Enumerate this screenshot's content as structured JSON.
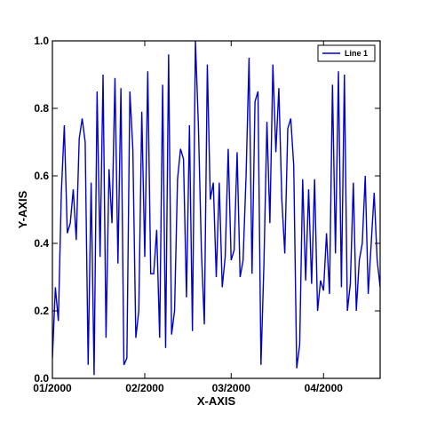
{
  "chart_data": {
    "type": "line",
    "title": "",
    "xlabel": "X-AXIS",
    "ylabel": "Y-AXIS",
    "x_type": "date",
    "xlim": [
      "2000-01-01",
      "2000-04-20"
    ],
    "ylim": [
      0.0,
      1.0
    ],
    "x_ticks": [
      "2000-01-01",
      "2000-02-01",
      "2000-03-01",
      "2000-04-01"
    ],
    "x_tick_labels": [
      "01/2000",
      "02/2000",
      "03/2000",
      "04/2000"
    ],
    "y_ticks": [
      0.0,
      0.2,
      0.4,
      0.6,
      0.8,
      1.0
    ],
    "y_tick_labels": [
      "0.0",
      "0.2",
      "0.4",
      "0.6",
      "0.8",
      "1.0"
    ],
    "grid": false,
    "legend_position": "top-right",
    "series": [
      {
        "name": "Line 1",
        "color": "#0000cc",
        "x": [
          "2000-01-01",
          "2000-01-02",
          "2000-01-03",
          "2000-01-04",
          "2000-01-05",
          "2000-01-06",
          "2000-01-07",
          "2000-01-08",
          "2000-01-09",
          "2000-01-10",
          "2000-01-11",
          "2000-01-12",
          "2000-01-13",
          "2000-01-14",
          "2000-01-15",
          "2000-01-16",
          "2000-01-17",
          "2000-01-18",
          "2000-01-19",
          "2000-01-20",
          "2000-01-21",
          "2000-01-22",
          "2000-01-23",
          "2000-01-24",
          "2000-01-25",
          "2000-01-26",
          "2000-01-27",
          "2000-01-28",
          "2000-01-29",
          "2000-01-30",
          "2000-01-31",
          "2000-02-01",
          "2000-02-02",
          "2000-02-03",
          "2000-02-04",
          "2000-02-05",
          "2000-02-06",
          "2000-02-07",
          "2000-02-08",
          "2000-02-09",
          "2000-02-10",
          "2000-02-11",
          "2000-02-12",
          "2000-02-13",
          "2000-02-14",
          "2000-02-15",
          "2000-02-16",
          "2000-02-17",
          "2000-02-18",
          "2000-02-19",
          "2000-02-20",
          "2000-02-21",
          "2000-02-22",
          "2000-02-23",
          "2000-02-24",
          "2000-02-25",
          "2000-02-26",
          "2000-02-27",
          "2000-02-28",
          "2000-02-29",
          "2000-03-01",
          "2000-03-02",
          "2000-03-03",
          "2000-03-04",
          "2000-03-05",
          "2000-03-06",
          "2000-03-07",
          "2000-03-08",
          "2000-03-09",
          "2000-03-10",
          "2000-03-11",
          "2000-03-12",
          "2000-03-13",
          "2000-03-14",
          "2000-03-15",
          "2000-03-16",
          "2000-03-17",
          "2000-03-18",
          "2000-03-19",
          "2000-03-20",
          "2000-03-21",
          "2000-03-22",
          "2000-03-23",
          "2000-03-24",
          "2000-03-25",
          "2000-03-26",
          "2000-03-27",
          "2000-03-28",
          "2000-03-29",
          "2000-03-30",
          "2000-03-31",
          "2000-04-01",
          "2000-04-02",
          "2000-04-03",
          "2000-04-04",
          "2000-04-05",
          "2000-04-06",
          "2000-04-07",
          "2000-04-08",
          "2000-04-09",
          "2000-04-10",
          "2000-04-11",
          "2000-04-12",
          "2000-04-13",
          "2000-04-14",
          "2000-04-15",
          "2000-04-16",
          "2000-04-17",
          "2000-04-18",
          "2000-04-19",
          "2000-04-20"
        ],
        "y": [
          0.06,
          0.27,
          0.17,
          0.55,
          0.75,
          0.43,
          0.46,
          0.56,
          0.41,
          0.71,
          0.77,
          0.7,
          0.04,
          0.58,
          0.01,
          0.85,
          0.36,
          0.9,
          0.12,
          0.62,
          0.46,
          0.89,
          0.34,
          0.86,
          0.04,
          0.06,
          0.85,
          0.68,
          0.12,
          0.2,
          0.79,
          0.36,
          0.91,
          0.31,
          0.31,
          0.44,
          0.12,
          0.87,
          0.09,
          0.96,
          0.13,
          0.2,
          0.59,
          0.68,
          0.65,
          0.24,
          0.75,
          0.14,
          1.0,
          0.75,
          0.38,
          0.16,
          0.93,
          0.53,
          0.58,
          0.3,
          0.58,
          0.27,
          0.36,
          0.68,
          0.35,
          0.38,
          0.67,
          0.3,
          0.35,
          0.6,
          0.95,
          0.31,
          0.82,
          0.85,
          0.04,
          0.34,
          0.76,
          0.46,
          0.93,
          0.67,
          0.86,
          0.53,
          0.37,
          0.74,
          0.77,
          0.63,
          0.03,
          0.1,
          0.59,
          0.29,
          0.56,
          0.28,
          0.59,
          0.2,
          0.29,
          0.26,
          0.43,
          0.25,
          0.87,
          0.37,
          0.91,
          0.27,
          0.9,
          0.2,
          0.28,
          0.58,
          0.2,
          0.35,
          0.4,
          0.6,
          0.25,
          0.4,
          0.55,
          0.35,
          0.27
        ]
      }
    ]
  }
}
